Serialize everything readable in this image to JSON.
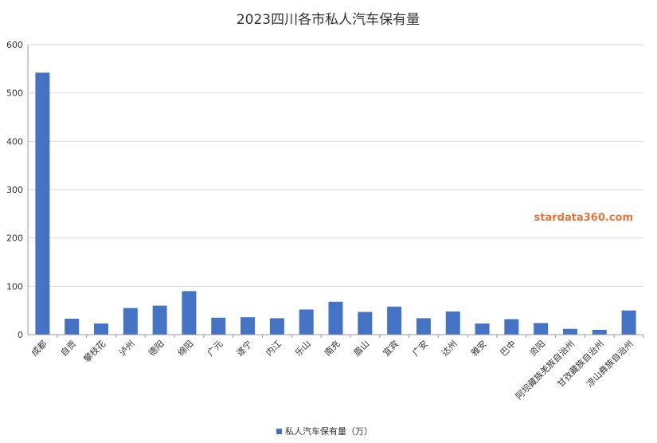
{
  "chart_data": {
    "type": "bar",
    "title": "2023四川各市私人汽车保有量",
    "categories": [
      "成都",
      "自贡",
      "攀枝花",
      "泸州",
      "德阳",
      "绵阳",
      "广元",
      "遂宁",
      "内江",
      "乐山",
      "南充",
      "眉山",
      "宜宾",
      "广安",
      "达州",
      "雅安",
      "巴中",
      "资阳",
      "阿坝藏族羌族自治州",
      "甘孜藏族自治州",
      "凉山彝族自治州"
    ],
    "series": [
      {
        "name": "私人汽车保有量（万）",
        "color": "#4472c4",
        "values": [
          542,
          33,
          23,
          55,
          60,
          90,
          35,
          36,
          34,
          52,
          68,
          47,
          58,
          34,
          48,
          23,
          32,
          24,
          12,
          10,
          50
        ]
      }
    ],
    "ylim": [
      0,
      600
    ],
    "yticks": [
      0,
      100,
      200,
      300,
      400,
      500,
      600
    ],
    "grid": true,
    "legend": "bottom"
  },
  "watermark": "stardata360.com"
}
